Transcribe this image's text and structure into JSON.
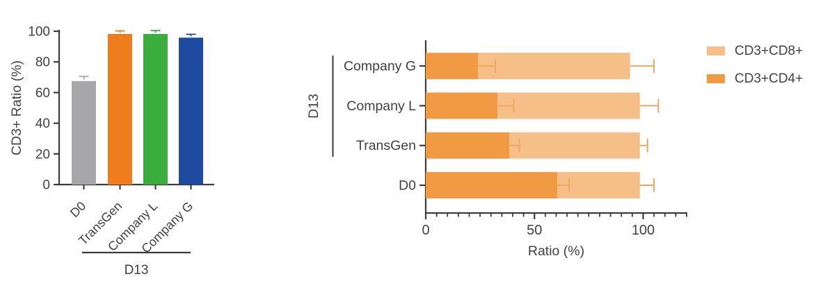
{
  "page": {
    "background": "#FFFFFF"
  },
  "chart_data": [
    {
      "type": "bar",
      "orientation": "vertical",
      "title": "",
      "ylabel": "CD3+ Ratio (%)",
      "xlabel": "",
      "categories": [
        "D0",
        "TransGen",
        "Company L",
        "Company G"
      ],
      "values": [
        67.5,
        98.2,
        98.2,
        95.8
      ],
      "errors_plus": [
        3.0,
        2.0,
        2.2,
        2.2
      ],
      "bar_colors": [
        "#A7A7AA",
        "#EF7D1D",
        "#3BAD3C",
        "#1E4BA0"
      ],
      "ylim": [
        0,
        100
      ],
      "yticks": [
        0,
        20,
        40,
        60,
        80,
        100
      ],
      "grid": "off",
      "group_annotation": {
        "label": "D13",
        "spans": "D0 through Company G"
      }
    },
    {
      "type": "bar",
      "orientation": "horizontal",
      "stacked": true,
      "title": "",
      "xlabel": "Ratio (%)",
      "categories_bottom_to_top": [
        "D0",
        "TransGen",
        "Company L",
        "Company G"
      ],
      "series": [
        {
          "name": "CD3+CD4+",
          "color": "#F19A44",
          "values": [
            60.5,
            38.5,
            33.0,
            24.0
          ],
          "errors_plus": [
            5.5,
            4.5,
            7.5,
            8.0
          ]
        },
        {
          "name": "CD3+CD8+",
          "color": "#F6BF87",
          "values": [
            38.0,
            60.0,
            65.5,
            70.0
          ],
          "errors_plus": [
            6.5,
            3.5,
            8.5,
            11.0
          ]
        }
      ],
      "xlim": [
        0,
        120
      ],
      "xticks": [
        0,
        50,
        100
      ],
      "minor_tick_step": 5,
      "grid": "off",
      "error_bar_color": "#F2A55E",
      "group_annotation": {
        "label": "D13",
        "spans": "TransGen through Company G"
      },
      "legend": {
        "position": "top-right",
        "entries_top_to_bottom": [
          "CD3+CD8+",
          "CD3+CD4+"
        ]
      }
    }
  ]
}
